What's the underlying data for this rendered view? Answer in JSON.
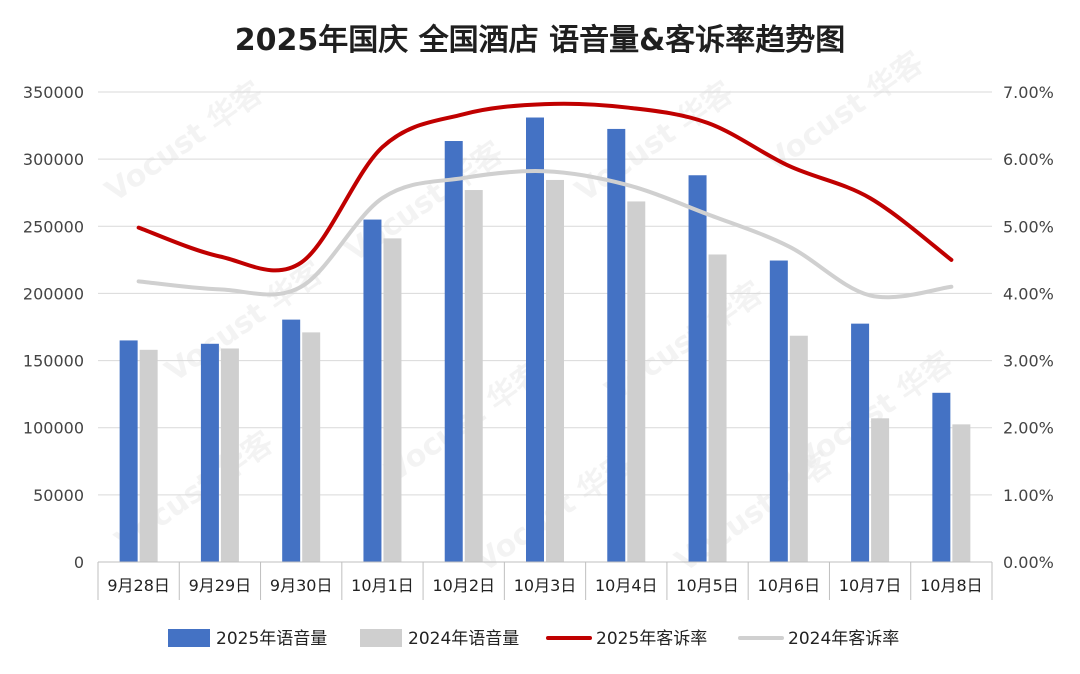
{
  "chart_data": {
    "type": "bar",
    "title": "2025年国庆 全国酒店 语音量&客诉率趋势图",
    "categories": [
      "9月28日",
      "9月29日",
      "9月30日",
      "10月1日",
      "10月2日",
      "10月3日",
      "10月4日",
      "10月5日",
      "10月6日",
      "10月7日",
      "10月8日"
    ],
    "y_left": {
      "ylim": [
        0,
        350000
      ],
      "ticks": [
        "0",
        "50000",
        "100000",
        "150000",
        "200000",
        "250000",
        "300000",
        "350000"
      ]
    },
    "y_right": {
      "ylim": [
        0,
        7
      ],
      "ticks": [
        "0.00%",
        "1.00%",
        "2.00%",
        "3.00%",
        "4.00%",
        "5.00%",
        "6.00%",
        "7.00%"
      ]
    },
    "bar_series": [
      {
        "name": "2025年语音量",
        "color": "#4472c4",
        "values": [
          165000,
          162500,
          180500,
          255000,
          313500,
          331000,
          322500,
          288000,
          224500,
          177500,
          126000
        ]
      },
      {
        "name": "2024年语音量",
        "color": "#cfcfcf",
        "values": [
          158000,
          159000,
          171000,
          241000,
          277000,
          284500,
          268500,
          229000,
          168500,
          107000,
          102500
        ]
      }
    ],
    "line_series": [
      {
        "name": "2025年客诉率",
        "color": "#c00000",
        "values": [
          4.98,
          4.55,
          4.46,
          6.18,
          6.67,
          6.82,
          6.77,
          6.54,
          5.9,
          5.42,
          4.5
        ]
      },
      {
        "name": "2024年客诉率",
        "color": "#d0d0d0",
        "values": [
          4.18,
          4.06,
          4.1,
          5.42,
          5.72,
          5.82,
          5.62,
          5.18,
          4.7,
          3.97,
          4.1
        ]
      }
    ],
    "grid": true,
    "legend_position": "bottom",
    "watermark": "Vocust 华客"
  }
}
